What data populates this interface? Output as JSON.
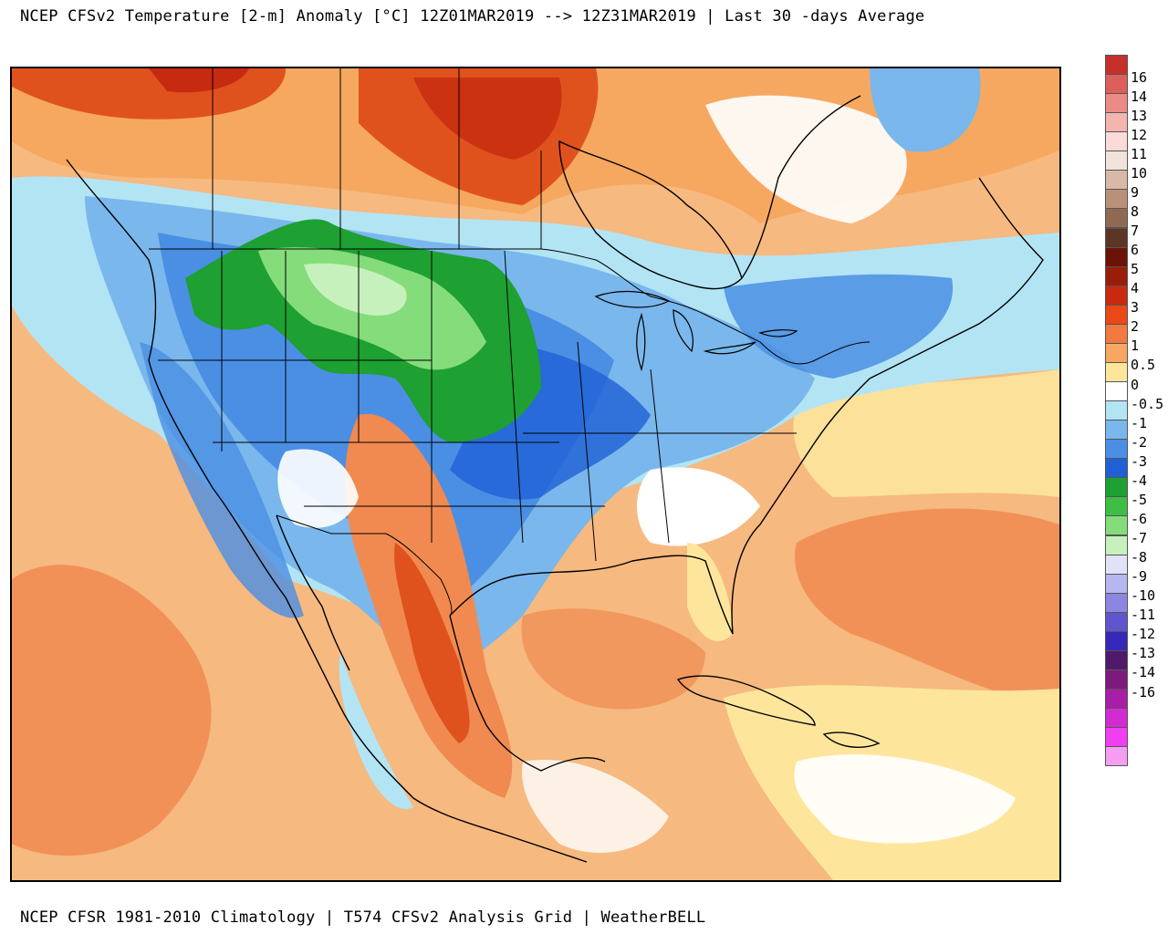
{
  "header": {
    "title": "NCEP CFSv2 Temperature [2-m] Anomaly  [°C] 12Z01MAR2019 --> 12Z31MAR2019 | Last 30 -days Average"
  },
  "footer": {
    "text": "NCEP CFSR 1981-2010 Climatology | T574 CFSv2 Analysis Grid | WeatherBELL"
  },
  "legend": {
    "unit": "°C",
    "bins": [
      {
        "label": "16",
        "color": "#c6302b"
      },
      {
        "label": "14",
        "color": "#dd5f5a"
      },
      {
        "label": "13",
        "color": "#ea8b86"
      },
      {
        "label": "12",
        "color": "#f4b4b0"
      },
      {
        "label": "11",
        "color": "#fbdad8"
      },
      {
        "label": "10",
        "color": "#efe3dc"
      },
      {
        "label": "9",
        "color": "#d8b9a7"
      },
      {
        "label": "8",
        "color": "#b99179"
      },
      {
        "label": "7",
        "color": "#8f6a52"
      },
      {
        "label": "6",
        "color": "#5c3524"
      },
      {
        "label": "5",
        "color": "#6b1306"
      },
      {
        "label": "4",
        "color": "#9a1d0a"
      },
      {
        "label": "3",
        "color": "#c92a0f"
      },
      {
        "label": "2",
        "color": "#e84916"
      },
      {
        "label": "1",
        "color": "#f07a3f"
      },
      {
        "label": "0.5",
        "color": "#f6a860"
      },
      {
        "label": "0",
        "color": "#fde69c"
      },
      {
        "label": "-0.5",
        "color": "#ffffff"
      },
      {
        "label": "-1",
        "color": "#b3e4f4"
      },
      {
        "label": "-2",
        "color": "#7ab7ec"
      },
      {
        "label": "-3",
        "color": "#4a8fe3"
      },
      {
        "label": "-4",
        "color": "#1f60d6"
      },
      {
        "label": "-5",
        "color": "#1ea032"
      },
      {
        "label": "-6",
        "color": "#3fbe45"
      },
      {
        "label": "-7",
        "color": "#84dd7a"
      },
      {
        "label": "-8",
        "color": "#c6f1bc"
      },
      {
        "label": "-9",
        "color": "#e0e2f8"
      },
      {
        "label": "-10",
        "color": "#b8b6ef"
      },
      {
        "label": "-11",
        "color": "#8d86e0"
      },
      {
        "label": "-12",
        "color": "#6155cf"
      },
      {
        "label": "-13",
        "color": "#3527b8"
      },
      {
        "label": "-14",
        "color": "#4f1a6c"
      },
      {
        "label": "-16",
        "color": "#7c1b7b"
      }
    ],
    "extra_swatches": [
      "#a81ea6",
      "#d22bd3",
      "#f03ef0",
      "#f59df0"
    ]
  },
  "map": {
    "fills": {
      "ocean_warm": "#f6b980",
      "warm_orange": "#f08a50",
      "warm_red": "#e0521d",
      "deep_red": "#c62a10",
      "near_zero": "#fde69c",
      "white": "#ffffff",
      "light_blue": "#b3e4f4",
      "mid_blue": "#7ab7ec",
      "blue": "#4a8fe3",
      "dark_blue": "#1f60d6",
      "green": "#1ea032",
      "light_green": "#84dd7a",
      "pale_green": "#c6f1bc"
    },
    "line_color": "#000000",
    "lake_color": "#888888"
  }
}
